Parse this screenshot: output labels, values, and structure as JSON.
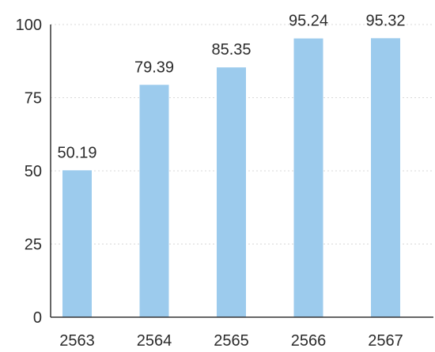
{
  "chart_data": {
    "type": "bar",
    "categories": [
      "2563",
      "2564",
      "2565",
      "2566",
      "2567"
    ],
    "values": [
      50.19,
      79.39,
      85.35,
      95.24,
      95.32
    ],
    "value_labels": [
      "50.19",
      "79.39",
      "85.35",
      "95.24",
      "95.32"
    ],
    "yticks": [
      "0",
      "25",
      "50",
      "75",
      "100"
    ],
    "ylim": [
      0,
      100
    ],
    "grid": "horizontal dashed",
    "bar_color": "#9ccbed",
    "axis_color": "#333333",
    "grid_color": "#d9d9d9"
  }
}
